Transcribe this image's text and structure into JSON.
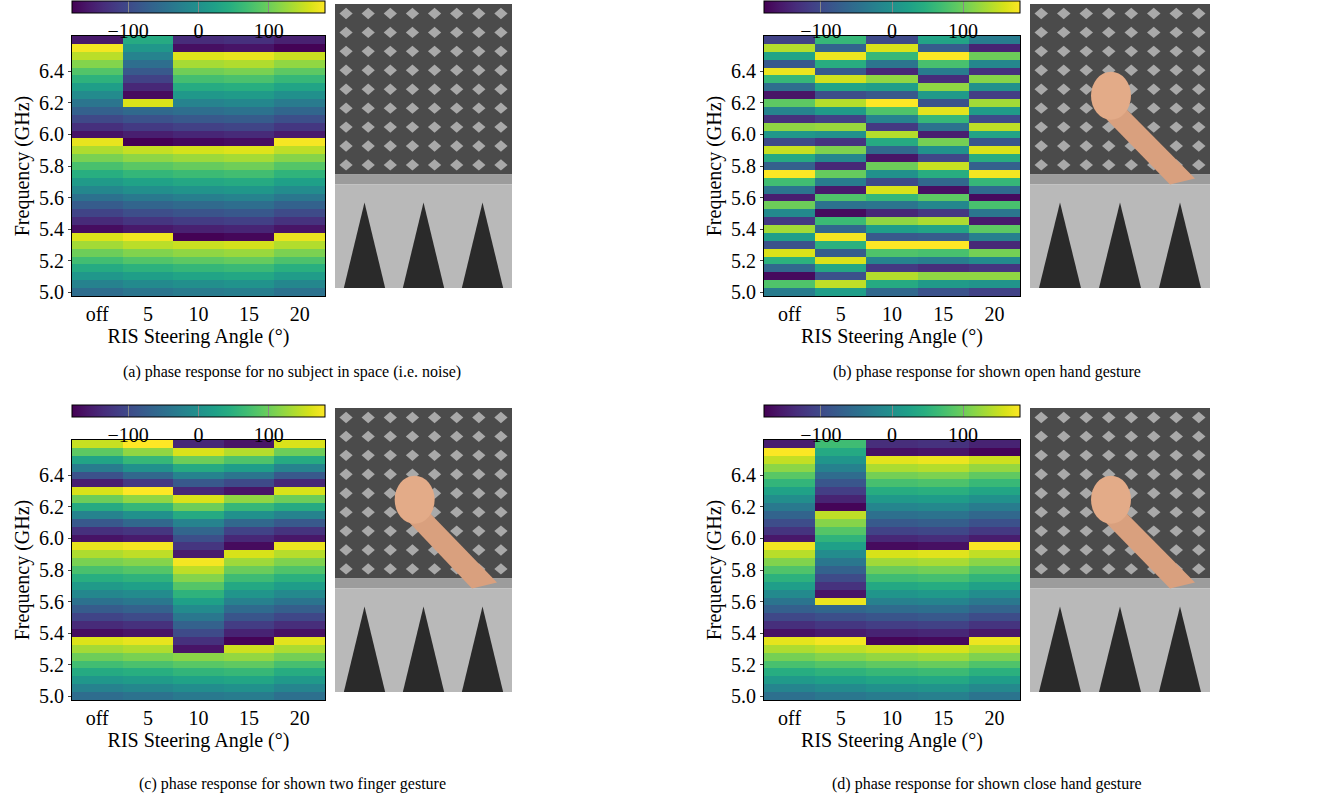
{
  "chart_data": [
    {
      "type": "heatmap",
      "caption": "(a) phase response for no subject in space (i.e. noise)",
      "x_label": "RIS Steering Angle (°)",
      "y_label": "Frequency (GHz)",
      "color": "Viridis",
      "categories": [
        "off",
        "5",
        "10",
        "15",
        "20"
      ],
      "y": [
        5,
        5.05,
        5.1,
        5.15,
        5.2,
        5.25,
        5.3,
        5.35,
        5.4,
        5.45,
        5.5,
        5.55,
        5.6,
        5.65,
        5.7,
        5.75,
        5.8,
        5.85,
        5.9,
        5.95,
        6,
        6.05,
        6.1,
        6.15,
        6.2,
        6.25,
        6.3,
        6.35,
        6.4,
        6.45,
        6.5,
        6.55,
        6.6
      ],
      "ylim": [
        4.975,
        6.625
      ],
      "yticks": [
        {
          "value": 5,
          "label": "5.0"
        },
        5.2,
        5.4,
        5.6,
        5.8,
        {
          "value": 6,
          "label": "6.0"
        },
        6.2,
        6.4
      ],
      "zlim": [
        -180,
        180
      ],
      "zticks": [
        {
          "value": -100,
          "label": "−100"
        },
        0,
        100
      ],
      "phase_deg": [
        [
          -52,
          -22,
          9,
          39,
          70,
          100,
          131,
          161,
          -168,
          -137,
          -107,
          -76,
          -46,
          -15,
          15,
          46,
          76,
          107,
          137,
          168,
          -162,
          -131,
          -101,
          -70,
          -40,
          -9,
          21,
          52,
          82,
          113,
          143,
          174,
          -156
        ],
        [
          -40,
          -10,
          21,
          51,
          82,
          112,
          143,
          173,
          -156,
          -125,
          -95,
          -64,
          -34,
          -3,
          27,
          58,
          88,
          119,
          149,
          -180,
          -150,
          -119,
          -89,
          -58,
          160,
          -170,
          -140,
          -110,
          -80,
          -50,
          -20,
          10,
          40
        ],
        [
          -32,
          -2,
          29,
          59,
          90,
          120,
          151,
          -179,
          -148,
          -117,
          -87,
          -56,
          -26,
          5,
          35,
          66,
          96,
          127,
          157,
          -172,
          -142,
          -111,
          -81,
          -50,
          -20,
          11,
          41,
          72,
          102,
          133,
          163,
          -166,
          -136
        ],
        [
          -27,
          3,
          34,
          64,
          95,
          125,
          156,
          -174,
          -143,
          -112,
          -82,
          -51,
          -21,
          10,
          40,
          71,
          101,
          132,
          162,
          -167,
          -137,
          -106,
          -76,
          -45,
          -15,
          16,
          46,
          77,
          107,
          138,
          168,
          -161,
          -131
        ],
        [
          -44,
          -14,
          17,
          47,
          78,
          108,
          139,
          169,
          -160,
          -129,
          -99,
          -68,
          -38,
          -7,
          23,
          54,
          84,
          115,
          145,
          176,
          -154,
          -123,
          -93,
          -62,
          -32,
          -1,
          29,
          60,
          90,
          121,
          151,
          -178,
          -148
        ]
      ]
    },
    {
      "type": "heatmap",
      "caption": "(b) phase response for shown open hand gesture",
      "x_label": "RIS Steering Angle (°)",
      "y_label": "Frequency (GHz)",
      "color": "Viridis",
      "categories": [
        "off",
        "5",
        "10",
        "15",
        "20"
      ],
      "y": [
        5,
        5.05,
        5.1,
        5.15,
        5.2,
        5.25,
        5.3,
        5.35,
        5.4,
        5.45,
        5.5,
        5.55,
        5.6,
        5.65,
        5.7,
        5.75,
        5.8,
        5.85,
        5.9,
        5.95,
        6,
        6.05,
        6.1,
        6.15,
        6.2,
        6.25,
        6.3,
        6.35,
        6.4,
        6.45,
        6.5,
        6.55,
        6.6
      ],
      "ylim": [
        4.975,
        6.625
      ],
      "yticks": [
        {
          "value": 5,
          "label": "5.0"
        },
        5.2,
        5.4,
        5.6,
        5.8,
        {
          "value": 6,
          "label": "6.0"
        },
        6.2,
        6.4
      ],
      "zlim": [
        -180,
        180
      ],
      "zticks": [
        {
          "value": -100,
          "label": "−100"
        },
        0,
        100
      ],
      "phase_deg": [
        [
          -30,
          80,
          -170,
          -60,
          50,
          160,
          -90,
          20,
          130,
          -120,
          -10,
          100,
          -150,
          -40,
          70,
          180,
          -70,
          40,
          150,
          -100,
          10,
          120,
          -130,
          -20,
          90,
          -160,
          -50,
          60,
          170,
          -80,
          30,
          140,
          -110
        ],
        [
          20,
          145,
          -90,
          35,
          160,
          -75,
          50,
          175,
          -60,
          65,
          -170,
          -45,
          80,
          -155,
          -30,
          95,
          -140,
          -15,
          110,
          -125,
          0,
          125,
          -110,
          15,
          140,
          -95,
          30,
          155,
          -80,
          45,
          170,
          -65,
          60
        ],
        [
          -60,
          40,
          140,
          -120,
          -20,
          80,
          180,
          -80,
          20,
          120,
          -140,
          -40,
          60,
          160,
          -100,
          0,
          100,
          -160,
          -60,
          40,
          140,
          -120,
          -20,
          80,
          180,
          -80,
          20,
          120,
          -140,
          -40,
          60,
          160,
          -100
        ],
        [
          -90,
          15,
          120,
          -135,
          -30,
          75,
          180,
          -75,
          30,
          135,
          -120,
          -15,
          90,
          -165,
          -60,
          45,
          150,
          -105,
          0,
          105,
          -150,
          -45,
          60,
          165,
          -90,
          15,
          120,
          -135,
          -30,
          75,
          180,
          -75,
          30
        ],
        [
          -110,
          5,
          120,
          -125,
          -10,
          105,
          -140,
          -25,
          90,
          -155,
          -40,
          75,
          -170,
          -55,
          60,
          175,
          -70,
          45,
          160,
          -85,
          30,
          145,
          -100,
          15,
          130,
          -115,
          0,
          115,
          -130,
          -15,
          100,
          -145,
          -30
        ]
      ]
    },
    {
      "type": "heatmap",
      "caption": "(c) phase response for shown two finger gesture",
      "x_label": "RIS Steering Angle (°)",
      "y_label": "Frequency (GHz)",
      "color": "Viridis",
      "categories": [
        "off",
        "5",
        "10",
        "15",
        "20"
      ],
      "y": [
        5,
        5.05,
        5.1,
        5.15,
        5.2,
        5.25,
        5.3,
        5.35,
        5.4,
        5.45,
        5.5,
        5.55,
        5.6,
        5.65,
        5.7,
        5.75,
        5.8,
        5.85,
        5.9,
        5.95,
        6,
        6.05,
        6.1,
        6.15,
        6.2,
        6.25,
        6.3,
        6.35,
        6.4,
        6.45,
        6.5,
        6.55,
        6.6
      ],
      "ylim": [
        4.975,
        6.625
      ],
      "yticks": [
        {
          "value": 5,
          "label": "5.0"
        },
        5.2,
        5.4,
        5.6,
        5.8,
        {
          "value": 6,
          "label": "6.0"
        },
        6.2,
        6.4
      ],
      "zlim": [
        -180,
        180
      ],
      "zticks": [
        {
          "value": -100,
          "label": "−100"
        },
        0,
        100
      ],
      "phase_deg": [
        [
          -52,
          -22,
          9,
          39,
          70,
          100,
          131,
          161,
          -168,
          -137,
          -107,
          -76,
          -46,
          -15,
          15,
          46,
          76,
          107,
          137,
          168,
          -162,
          -131,
          -80,
          -20,
          40,
          100,
          160,
          -150,
          -90,
          -30,
          30,
          90,
          150
        ],
        [
          -45,
          -15,
          16,
          46,
          77,
          107,
          138,
          168,
          -160,
          -130,
          -99,
          -69,
          -38,
          -8,
          23,
          53,
          84,
          114,
          145,
          175,
          -154,
          -124,
          -60,
          0,
          60,
          120,
          180,
          -120,
          -60,
          0,
          60,
          120,
          180
        ],
        [
          -35,
          -5,
          26,
          56,
          87,
          117,
          -160,
          -130,
          -99,
          -69,
          -38,
          -8,
          23,
          53,
          84,
          114,
          145,
          175,
          -154,
          -124,
          -93,
          -63,
          -20,
          40,
          100,
          160,
          -140,
          -80,
          -20,
          40,
          100,
          160,
          -140
        ],
        [
          -30,
          0,
          31,
          61,
          92,
          122,
          153,
          -177,
          -146,
          -116,
          -85,
          -55,
          -24,
          6,
          37,
          67,
          98,
          128,
          159,
          -170,
          -140,
          -109,
          -60,
          0,
          60,
          120,
          -160,
          -100,
          -40,
          20,
          80,
          140,
          -160
        ],
        [
          -48,
          -18,
          13,
          43,
          74,
          104,
          135,
          165,
          -164,
          -134,
          -103,
          -73,
          -42,
          -12,
          19,
          49,
          80,
          110,
          141,
          171,
          -158,
          -128,
          -80,
          -20,
          40,
          100,
          160,
          -140,
          -80,
          -20,
          40,
          100,
          160
        ]
      ]
    },
    {
      "type": "heatmap",
      "caption": "(d) phase response for shown close hand gesture",
      "x_label": "RIS Steering Angle (°)",
      "y_label": "Frequency (GHz)",
      "color": "Viridis",
      "categories": [
        "off",
        "5",
        "10",
        "15",
        "20"
      ],
      "y": [
        5,
        5.05,
        5.1,
        5.15,
        5.2,
        5.25,
        5.3,
        5.35,
        5.4,
        5.45,
        5.5,
        5.55,
        5.6,
        5.65,
        5.7,
        5.75,
        5.8,
        5.85,
        5.9,
        5.95,
        6,
        6.05,
        6.1,
        6.15,
        6.2,
        6.25,
        6.3,
        6.35,
        6.4,
        6.45,
        6.5,
        6.55,
        6.6
      ],
      "ylim": [
        4.975,
        6.625
      ],
      "yticks": [
        {
          "value": 5,
          "label": "5.0"
        },
        5.2,
        5.4,
        5.6,
        5.8,
        {
          "value": 6,
          "label": "6.0"
        },
        6.2,
        6.4
      ],
      "zlim": [
        -180,
        180
      ],
      "zticks": [
        {
          "value": -100,
          "label": "−100"
        },
        0,
        100
      ],
      "phase_deg": [
        [
          -47,
          -17,
          14,
          44,
          75,
          105,
          136,
          166,
          -163,
          -132,
          -102,
          -71,
          -41,
          -10,
          20,
          51,
          81,
          112,
          142,
          173,
          -157,
          -126,
          -96,
          -65,
          -35,
          -4,
          26,
          57,
          87,
          118,
          148,
          179,
          -151
        ],
        [
          -38,
          -8,
          23,
          53,
          84,
          114,
          145,
          175,
          -154,
          -123,
          -93,
          -62,
          170,
          -160,
          -129,
          -99,
          -68,
          -38,
          -7,
          23,
          54,
          84,
          115,
          145,
          -176,
          -145,
          -115,
          -84,
          -54,
          -23,
          7,
          38,
          68
        ],
        [
          -30,
          0,
          31,
          61,
          92,
          122,
          153,
          -176,
          -146,
          -115,
          -85,
          -54,
          -24,
          7,
          37,
          68,
          98,
          129,
          159,
          -170,
          -140,
          -109,
          -79,
          -48,
          -18,
          13,
          43,
          74,
          104,
          135,
          165,
          -164,
          -134
        ],
        [
          -25,
          5,
          36,
          66,
          97,
          127,
          158,
          -172,
          -141,
          -110,
          -80,
          -49,
          -19,
          12,
          42,
          73,
          103,
          134,
          164,
          -165,
          -135,
          -104,
          -74,
          -43,
          -13,
          18,
          48,
          79,
          109,
          140,
          170,
          -159,
          -129
        ],
        [
          -42,
          -12,
          19,
          49,
          80,
          110,
          141,
          171,
          -158,
          -127,
          -97,
          -66,
          -36,
          -5,
          25,
          56,
          86,
          117,
          147,
          178,
          -152,
          -121,
          -91,
          -60,
          -30,
          1,
          31,
          62,
          92,
          123,
          153,
          -176,
          -146
        ]
      ]
    }
  ]
}
